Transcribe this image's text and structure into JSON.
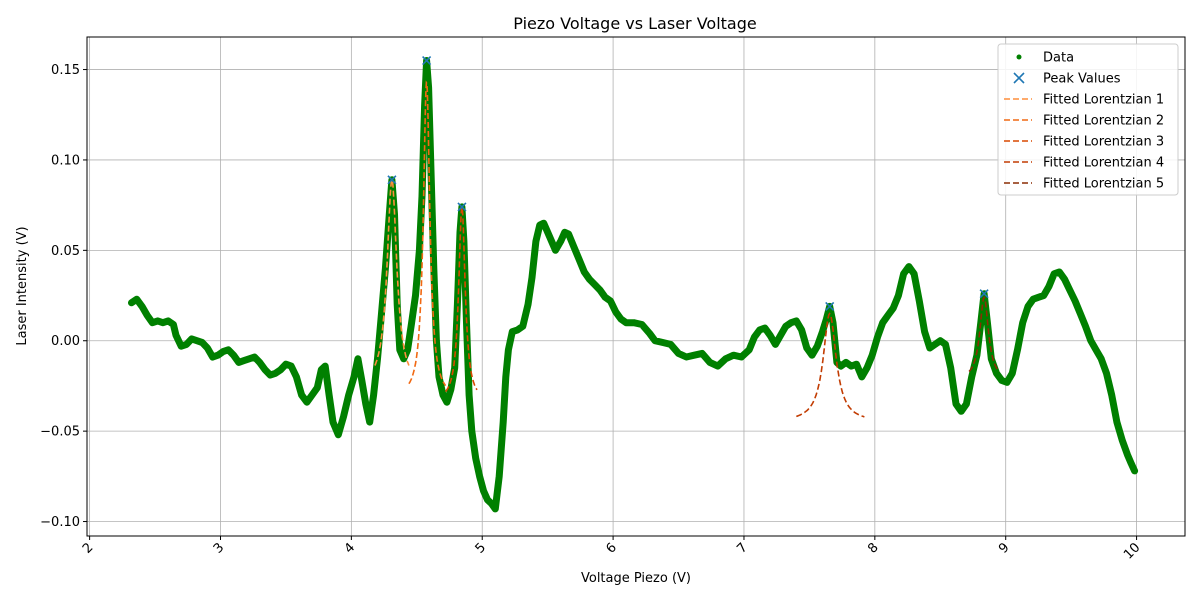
{
  "chart_data": {
    "type": "scatter",
    "title": "Piezo Voltage vs Laser Voltage",
    "xlabel": "Voltage Piezo (V)",
    "ylabel": "Laser Intensity (V)",
    "xlim": [
      1.98,
      10.37
    ],
    "ylim": [
      -0.108,
      0.168
    ],
    "x_ticks": [
      2,
      3,
      4,
      5,
      6,
      7,
      8,
      9,
      10
    ],
    "x_tick_labels": [
      "2",
      "3",
      "4",
      "5",
      "6",
      "7",
      "8",
      "9",
      "10"
    ],
    "y_ticks": [
      -0.1,
      -0.05,
      0.0,
      0.05,
      0.1,
      0.15
    ],
    "y_tick_labels": [
      "−0.10",
      "−0.05",
      "0.00",
      "0.05",
      "0.10",
      "0.15"
    ],
    "grid": true,
    "legend_position": "top-right",
    "data_series": {
      "name": "Data",
      "color": "#008000",
      "points": [
        [
          2.32,
          0.021
        ],
        [
          2.36,
          0.023
        ],
        [
          2.4,
          0.019
        ],
        [
          2.44,
          0.014
        ],
        [
          2.48,
          0.01
        ],
        [
          2.52,
          0.011
        ],
        [
          2.56,
          0.01
        ],
        [
          2.6,
          0.011
        ],
        [
          2.64,
          0.009
        ],
        [
          2.66,
          0.003
        ],
        [
          2.7,
          -0.003
        ],
        [
          2.74,
          -0.002
        ],
        [
          2.78,
          0.001
        ],
        [
          2.82,
          0.0
        ],
        [
          2.86,
          -0.001
        ],
        [
          2.9,
          -0.004
        ],
        [
          2.94,
          -0.009
        ],
        [
          2.98,
          -0.008
        ],
        [
          3.02,
          -0.006
        ],
        [
          3.06,
          -0.005
        ],
        [
          3.1,
          -0.008
        ],
        [
          3.14,
          -0.012
        ],
        [
          3.18,
          -0.011
        ],
        [
          3.22,
          -0.01
        ],
        [
          3.26,
          -0.009
        ],
        [
          3.3,
          -0.012
        ],
        [
          3.34,
          -0.016
        ],
        [
          3.38,
          -0.019
        ],
        [
          3.42,
          -0.018
        ],
        [
          3.46,
          -0.016
        ],
        [
          3.5,
          -0.013
        ],
        [
          3.54,
          -0.014
        ],
        [
          3.58,
          -0.02
        ],
        [
          3.62,
          -0.03
        ],
        [
          3.66,
          -0.034
        ],
        [
          3.7,
          -0.03
        ],
        [
          3.74,
          -0.026
        ],
        [
          3.77,
          -0.016
        ],
        [
          3.8,
          -0.014
        ],
        [
          3.83,
          -0.03
        ],
        [
          3.86,
          -0.045
        ],
        [
          3.9,
          -0.052
        ],
        [
          3.94,
          -0.042
        ],
        [
          3.98,
          -0.03
        ],
        [
          4.02,
          -0.02
        ],
        [
          4.05,
          -0.01
        ],
        [
          4.08,
          -0.022
        ],
        [
          4.11,
          -0.035
        ],
        [
          4.14,
          -0.045
        ],
        [
          4.17,
          -0.03
        ],
        [
          4.2,
          -0.01
        ],
        [
          4.23,
          0.015
        ],
        [
          4.26,
          0.04
        ],
        [
          4.29,
          0.07
        ],
        [
          4.31,
          0.089
        ],
        [
          4.33,
          0.07
        ],
        [
          4.35,
          0.02
        ],
        [
          4.37,
          -0.005
        ],
        [
          4.4,
          -0.01
        ],
        [
          4.43,
          -0.005
        ],
        [
          4.46,
          0.01
        ],
        [
          4.49,
          0.025
        ],
        [
          4.52,
          0.05
        ],
        [
          4.54,
          0.08
        ],
        [
          4.56,
          0.13
        ],
        [
          4.575,
          0.155
        ],
        [
          4.59,
          0.14
        ],
        [
          4.61,
          0.09
        ],
        [
          4.63,
          0.04
        ],
        [
          4.65,
          0.0
        ],
        [
          4.67,
          -0.02
        ],
        [
          4.7,
          -0.03
        ],
        [
          4.73,
          -0.034
        ],
        [
          4.76,
          -0.027
        ],
        [
          4.79,
          -0.015
        ],
        [
          4.81,
          0.02
        ],
        [
          4.83,
          0.06
        ],
        [
          4.845,
          0.074
        ],
        [
          4.86,
          0.055
        ],
        [
          4.88,
          0.01
        ],
        [
          4.9,
          -0.03
        ],
        [
          4.92,
          -0.05
        ],
        [
          4.95,
          -0.065
        ],
        [
          4.98,
          -0.075
        ],
        [
          5.01,
          -0.083
        ],
        [
          5.04,
          -0.088
        ],
        [
          5.07,
          -0.09
        ],
        [
          5.1,
          -0.093
        ],
        [
          5.13,
          -0.075
        ],
        [
          5.16,
          -0.045
        ],
        [
          5.18,
          -0.02
        ],
        [
          5.2,
          -0.005
        ],
        [
          5.23,
          0.005
        ],
        [
          5.27,
          0.006
        ],
        [
          5.31,
          0.008
        ],
        [
          5.35,
          0.02
        ],
        [
          5.38,
          0.035
        ],
        [
          5.41,
          0.055
        ],
        [
          5.44,
          0.064
        ],
        [
          5.47,
          0.065
        ],
        [
          5.5,
          0.06
        ],
        [
          5.53,
          0.055
        ],
        [
          5.56,
          0.05
        ],
        [
          5.6,
          0.055
        ],
        [
          5.63,
          0.06
        ],
        [
          5.66,
          0.059
        ],
        [
          5.7,
          0.052
        ],
        [
          5.74,
          0.045
        ],
        [
          5.78,
          0.038
        ],
        [
          5.82,
          0.034
        ],
        [
          5.86,
          0.031
        ],
        [
          5.9,
          0.028
        ],
        [
          5.94,
          0.024
        ],
        [
          5.98,
          0.022
        ],
        [
          6.02,
          0.016
        ],
        [
          6.06,
          0.012
        ],
        [
          6.1,
          0.01
        ],
        [
          6.16,
          0.01
        ],
        [
          6.22,
          0.009
        ],
        [
          6.28,
          0.004
        ],
        [
          6.32,
          0.0
        ],
        [
          6.38,
          -0.001
        ],
        [
          6.44,
          -0.002
        ],
        [
          6.5,
          -0.007
        ],
        [
          6.56,
          -0.009
        ],
        [
          6.62,
          -0.008
        ],
        [
          6.68,
          -0.007
        ],
        [
          6.74,
          -0.012
        ],
        [
          6.8,
          -0.014
        ],
        [
          6.86,
          -0.01
        ],
        [
          6.92,
          -0.008
        ],
        [
          6.98,
          -0.009
        ],
        [
          7.04,
          -0.005
        ],
        [
          7.08,
          0.002
        ],
        [
          7.12,
          0.006
        ],
        [
          7.16,
          0.007
        ],
        [
          7.2,
          0.003
        ],
        [
          7.24,
          -0.002
        ],
        [
          7.28,
          0.003
        ],
        [
          7.32,
          0.008
        ],
        [
          7.36,
          0.01
        ],
        [
          7.4,
          0.011
        ],
        [
          7.44,
          0.006
        ],
        [
          7.48,
          -0.004
        ],
        [
          7.52,
          -0.008
        ],
        [
          7.56,
          -0.003
        ],
        [
          7.6,
          0.005
        ],
        [
          7.63,
          0.012
        ],
        [
          7.655,
          0.019
        ],
        [
          7.68,
          0.01
        ],
        [
          7.71,
          -0.012
        ],
        [
          7.74,
          -0.014
        ],
        [
          7.78,
          -0.012
        ],
        [
          7.82,
          -0.014
        ],
        [
          7.86,
          -0.013
        ],
        [
          7.9,
          -0.02
        ],
        [
          7.94,
          -0.015
        ],
        [
          7.98,
          -0.008
        ],
        [
          8.02,
          0.002
        ],
        [
          8.06,
          0.01
        ],
        [
          8.1,
          0.014
        ],
        [
          8.14,
          0.018
        ],
        [
          8.18,
          0.025
        ],
        [
          8.22,
          0.037
        ],
        [
          8.26,
          0.041
        ],
        [
          8.3,
          0.037
        ],
        [
          8.34,
          0.022
        ],
        [
          8.38,
          0.005
        ],
        [
          8.42,
          -0.004
        ],
        [
          8.46,
          -0.002
        ],
        [
          8.5,
          0.0
        ],
        [
          8.54,
          -0.002
        ],
        [
          8.58,
          -0.015
        ],
        [
          8.62,
          -0.035
        ],
        [
          8.66,
          -0.039
        ],
        [
          8.7,
          -0.035
        ],
        [
          8.74,
          -0.02
        ],
        [
          8.78,
          -0.008
        ],
        [
          8.81,
          0.01
        ],
        [
          8.835,
          0.026
        ],
        [
          8.86,
          0.01
        ],
        [
          8.89,
          -0.01
        ],
        [
          8.93,
          -0.018
        ],
        [
          8.97,
          -0.022
        ],
        [
          9.01,
          -0.023
        ],
        [
          9.05,
          -0.018
        ],
        [
          9.09,
          -0.005
        ],
        [
          9.13,
          0.01
        ],
        [
          9.17,
          0.019
        ],
        [
          9.21,
          0.023
        ],
        [
          9.25,
          0.024
        ],
        [
          9.29,
          0.025
        ],
        [
          9.33,
          0.03
        ],
        [
          9.37,
          0.037
        ],
        [
          9.41,
          0.038
        ],
        [
          9.45,
          0.034
        ],
        [
          9.49,
          0.028
        ],
        [
          9.53,
          0.022
        ],
        [
          9.57,
          0.015
        ],
        [
          9.61,
          0.008
        ],
        [
          9.65,
          0.0
        ],
        [
          9.69,
          -0.005
        ],
        [
          9.73,
          -0.01
        ],
        [
          9.77,
          -0.018
        ],
        [
          9.81,
          -0.03
        ],
        [
          9.85,
          -0.045
        ],
        [
          9.89,
          -0.055
        ],
        [
          9.93,
          -0.063
        ],
        [
          9.96,
          -0.068
        ],
        [
          9.985,
          -0.072
        ]
      ]
    },
    "peak_series": {
      "name": "Peak Values",
      "color": "#1f77b4",
      "points": [
        [
          4.31,
          0.089
        ],
        [
          4.575,
          0.155
        ],
        [
          4.845,
          0.074
        ],
        [
          7.655,
          0.019
        ],
        [
          8.835,
          0.026
        ]
      ]
    },
    "fit_series": [
      {
        "name": "Fitted Lorentzian 1",
        "color": "#fd8d3c",
        "x0": 4.31,
        "amp": 0.115,
        "gamma": 0.045,
        "offset": -0.026,
        "xrange": [
          4.18,
          4.44
        ]
      },
      {
        "name": "Fitted Lorentzian 2",
        "color": "#f16913",
        "x0": 4.575,
        "amp": 0.175,
        "gamma": 0.03,
        "offset": -0.032,
        "xrange": [
          4.44,
          4.72
        ]
      },
      {
        "name": "Fitted Lorentzian 3",
        "color": "#d94801",
        "x0": 4.845,
        "amp": 0.108,
        "gamma": 0.03,
        "offset": -0.034,
        "xrange": [
          4.72,
          4.96
        ]
      },
      {
        "name": "Fitted Lorentzian 4",
        "color": "#c23c02",
        "x0": 7.655,
        "amp": 0.06,
        "gamma": 0.06,
        "offset": -0.045,
        "xrange": [
          7.4,
          7.92
        ]
      },
      {
        "name": "Fitted Lorentzian 5",
        "color": "#8c2d04",
        "x0": 8.835,
        "amp": 0.046,
        "gamma": 0.04,
        "offset": -0.022,
        "xrange": [
          8.72,
          8.95
        ]
      }
    ]
  }
}
